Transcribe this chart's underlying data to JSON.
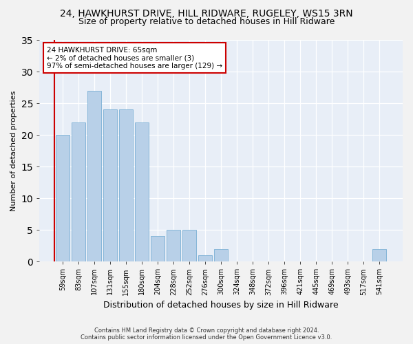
{
  "title1": "24, HAWKHURST DRIVE, HILL RIDWARE, RUGELEY, WS15 3RN",
  "title2": "Size of property relative to detached houses in Hill Ridware",
  "xlabel": "Distribution of detached houses by size in Hill Ridware",
  "ylabel": "Number of detached properties",
  "categories": [
    "59sqm",
    "83sqm",
    "107sqm",
    "131sqm",
    "155sqm",
    "180sqm",
    "204sqm",
    "228sqm",
    "252sqm",
    "276sqm",
    "300sqm",
    "324sqm",
    "348sqm",
    "372sqm",
    "396sqm",
    "421sqm",
    "445sqm",
    "469sqm",
    "493sqm",
    "517sqm",
    "541sqm"
  ],
  "values": [
    20,
    22,
    27,
    24,
    24,
    22,
    4,
    5,
    5,
    1,
    2,
    0,
    0,
    0,
    0,
    0,
    0,
    0,
    0,
    0,
    2
  ],
  "bar_color": "#b8d0e8",
  "bar_edge_color": "#7aafd4",
  "highlight_color": "#cc0000",
  "annotation_text": "24 HAWKHURST DRIVE: 65sqm\n← 2% of detached houses are smaller (3)\n97% of semi-detached houses are larger (129) →",
  "annotation_box_color": "#ffffff",
  "annotation_box_edge": "#cc0000",
  "ylim": [
    0,
    35
  ],
  "yticks": [
    0,
    5,
    10,
    15,
    20,
    25,
    30,
    35
  ],
  "footer": "Contains HM Land Registry data © Crown copyright and database right 2024.\nContains public sector information licensed under the Open Government Licence v3.0.",
  "plot_bg_color": "#e8eef7",
  "fig_bg_color": "#f2f2f2",
  "grid_color": "#ffffff",
  "title1_fontsize": 10,
  "title2_fontsize": 9,
  "axis_label_fontsize": 8,
  "tick_fontsize": 7,
  "footer_fontsize": 6,
  "annot_fontsize": 7.5,
  "bar_width": 0.85
}
